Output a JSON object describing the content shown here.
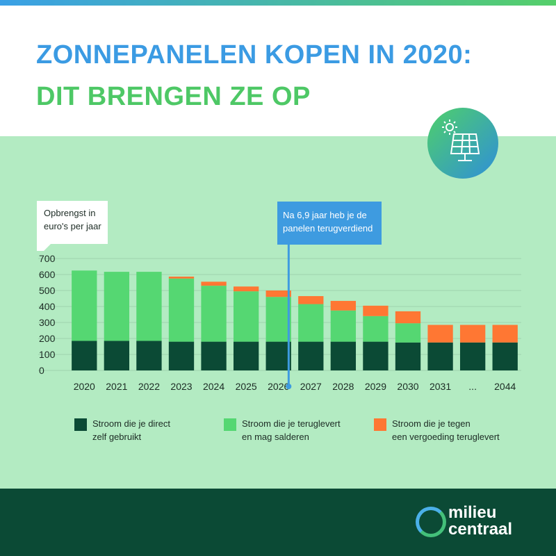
{
  "header": {
    "title_line1": "ZONNEPANELEN KOPEN IN 2020:",
    "title_line2": "DIT BRENGEN ZE OP"
  },
  "callout": {
    "line1": "Na 6,9 jaar heb je de",
    "line2": "panelen terugverdiend"
  },
  "icon": {
    "name": "solar-panel-icon"
  },
  "legend": [
    {
      "line1": "Stroom die je direct",
      "line2": "zelf gebruikt",
      "color": "#0b4a35"
    },
    {
      "line1": "Stroom die je teruglevert",
      "line2": "en mag salderen",
      "color": "#55d772"
    },
    {
      "line1": "Stroom die je tegen",
      "line2": "een vergoeding teruglevert",
      "color": "#ff7733"
    }
  ],
  "brand": {
    "line1": "milieu",
    "line2": "centraal"
  },
  "chart_data": {
    "type": "bar",
    "stacked": true,
    "ylabel_line1": "Opbrengst in",
    "ylabel_line2": "euro's per jaar",
    "ylim": [
      0,
      700
    ],
    "yticks": [
      0,
      100,
      200,
      300,
      400,
      500,
      600,
      700
    ],
    "grid": true,
    "payback_years": 6.9,
    "categories": [
      "2020",
      "2021",
      "2022",
      "2023",
      "2024",
      "2025",
      "2026",
      "2027",
      "2028",
      "2029",
      "2030",
      "2031",
      "...",
      "2044"
    ],
    "series": [
      {
        "name": "Stroom die je direct zelf gebruikt",
        "color": "#0b4a35",
        "values": [
          185,
          185,
          185,
          180,
          180,
          180,
          180,
          180,
          180,
          180,
          175,
          175,
          175,
          175
        ]
      },
      {
        "name": "Stroom die je teruglevert en mag salderen",
        "color": "#55d772",
        "values": [
          440,
          432,
          432,
          395,
          350,
          315,
          280,
          235,
          195,
          160,
          120,
          0,
          0,
          0
        ]
      },
      {
        "name": "Stroom die je tegen een vergoeding teruglevert",
        "color": "#ff7733",
        "values": [
          0,
          0,
          0,
          12,
          25,
          30,
          40,
          50,
          60,
          65,
          75,
          110,
          110,
          110
        ]
      }
    ]
  }
}
